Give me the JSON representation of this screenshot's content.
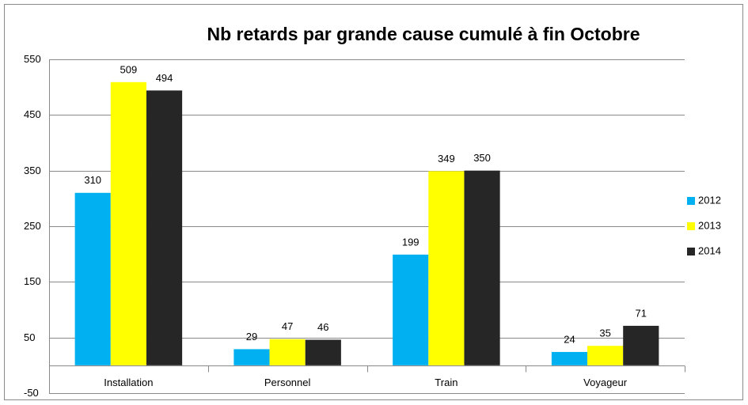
{
  "chart_data": {
    "type": "bar",
    "title": "Nb retards par grande cause cumulé à fin Octobre",
    "categories": [
      "Installation",
      "Personnel",
      "Train",
      "Voyageur"
    ],
    "series": [
      {
        "name": "2012",
        "color": "#00b0f0",
        "values": [
          310,
          29,
          199,
          24
        ]
      },
      {
        "name": "2013",
        "color": "#ffff00",
        "values": [
          509,
          47,
          349,
          35
        ]
      },
      {
        "name": "2014",
        "color": "#262626",
        "values": [
          494,
          46,
          350,
          71
        ]
      }
    ],
    "ylim": [
      -50,
      550
    ],
    "yticks": [
      -50,
      50,
      150,
      250,
      350,
      450,
      550
    ],
    "grid": true,
    "legend": "right"
  }
}
